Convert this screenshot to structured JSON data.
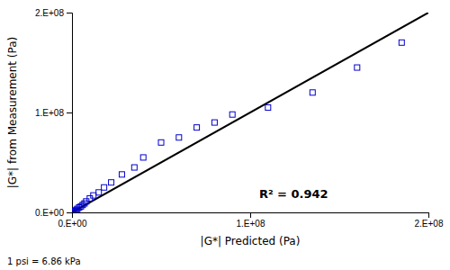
{
  "chart_data": {
    "type": "scatter",
    "xlabel": "|G*| Predicted (Pa)",
    "ylabel": "|G*| from Measurement (Pa)",
    "annotations": [
      {
        "text": "R² = 0.942",
        "x": 105000000.0,
        "y": 18000000.0
      }
    ],
    "footnote": "1 psi = 6.86 kPa",
    "xlim": [
      0,
      200000000.0
    ],
    "ylim": [
      0,
      200000000.0
    ],
    "xticks": [
      {
        "value": 0,
        "label": "0.E+00"
      },
      {
        "value": 100000000.0,
        "label": "1.E+08"
      },
      {
        "value": 200000000.0,
        "label": "2.E+08"
      }
    ],
    "yticks": [
      {
        "value": 0,
        "label": "0.E+00"
      },
      {
        "value": 100000000.0,
        "label": "1.E+08"
      },
      {
        "value": 200000000.0,
        "label": "2.E+08"
      }
    ],
    "grid": false,
    "series": [
      {
        "type": "line",
        "color": "#000000",
        "x": [
          0,
          200000000.0
        ],
        "values": [
          0,
          200000000.0
        ]
      },
      {
        "type": "scatter",
        "color": "#0000CD",
        "marker": "square",
        "x": [
          100000.0,
          200000.0,
          300000.0,
          500000.0,
          800000.0,
          1000000.0,
          1500000.0,
          2000000.0,
          2500000.0,
          3000000.0,
          4000000.0,
          5000000.0,
          6000000.0,
          7000000.0,
          8000000.0,
          10000000.0,
          12000000.0,
          15000000.0,
          18000000.0,
          22000000.0,
          28000000.0,
          35000000.0,
          40000000.0,
          50000000.0,
          60000000.0,
          70000000.0,
          80000000.0,
          90000000.0,
          110000000.0,
          135000000.0,
          160000000.0,
          185000000.0
        ],
        "values": [
          50000.0,
          100000.0,
          200000.0,
          400000.0,
          600000.0,
          800000.0,
          1200000.0,
          1800000.0,
          2500000.0,
          3500000.0,
          5000000.0,
          6000000.0,
          7500000.0,
          9000000.0,
          11000000.0,
          14000000.0,
          17000000.0,
          20000000.0,
          25000000.0,
          30000000.0,
          38000000.0,
          45000000.0,
          55000000.0,
          70000000.0,
          75000000.0,
          85000000.0,
          90000000.0,
          98000000.0,
          105000000.0,
          120000000.0,
          145000000.0,
          170000000.0
        ]
      }
    ]
  }
}
